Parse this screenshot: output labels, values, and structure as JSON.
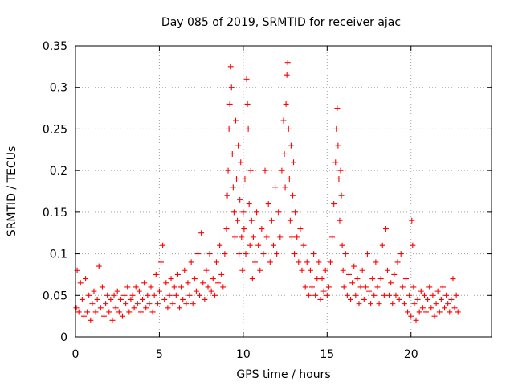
{
  "chart_data": {
    "type": "scatter",
    "title": "Day 085 of 2019, SRMTID for receiver ajac",
    "xlabel": "GPS time / hours",
    "ylabel": "SRMTID / TECUs",
    "xlim": [
      0,
      24.8
    ],
    "ylim": [
      0,
      0.35
    ],
    "xticks": [
      0,
      5,
      10,
      15,
      20
    ],
    "xtick_labels": [
      "0",
      "5",
      "10",
      "15",
      "20"
    ],
    "yticks": [
      0,
      0.05,
      0.1,
      0.15,
      0.2,
      0.25,
      0.3,
      0.35
    ],
    "ytick_labels": [
      "0",
      "0.05",
      "0.1",
      "0.15",
      "0.2",
      "0.25",
      "0.3",
      "0.35"
    ],
    "grid": true,
    "marker": "+",
    "color": "#ff0000",
    "series": [
      {
        "name": "SRMTID",
        "points": [
          [
            0.05,
            0.035
          ],
          [
            0.1,
            0.08
          ],
          [
            0.2,
            0.03
          ],
          [
            0.3,
            0.065
          ],
          [
            0.4,
            0.045
          ],
          [
            0.5,
            0.025
          ],
          [
            0.6,
            0.07
          ],
          [
            0.7,
            0.03
          ],
          [
            0.8,
            0.05
          ],
          [
            0.9,
            0.02
          ],
          [
            1.0,
            0.04
          ],
          [
            1.1,
            0.055
          ],
          [
            1.2,
            0.03
          ],
          [
            1.3,
            0.045
          ],
          [
            1.4,
            0.085
          ],
          [
            1.5,
            0.035
          ],
          [
            1.6,
            0.06
          ],
          [
            1.7,
            0.025
          ],
          [
            1.8,
            0.04
          ],
          [
            1.9,
            0.05
          ],
          [
            2.0,
            0.03
          ],
          [
            2.1,
            0.045
          ],
          [
            2.2,
            0.02
          ],
          [
            2.3,
            0.05
          ],
          [
            2.4,
            0.035
          ],
          [
            2.5,
            0.055
          ],
          [
            2.6,
            0.03
          ],
          [
            2.7,
            0.045
          ],
          [
            2.8,
            0.025
          ],
          [
            2.9,
            0.05
          ],
          [
            3.0,
            0.04
          ],
          [
            3.1,
            0.06
          ],
          [
            3.2,
            0.03
          ],
          [
            3.3,
            0.045
          ],
          [
            3.4,
            0.05
          ],
          [
            3.5,
            0.035
          ],
          [
            3.6,
            0.06
          ],
          [
            3.7,
            0.04
          ],
          [
            3.8,
            0.055
          ],
          [
            3.9,
            0.03
          ],
          [
            4.0,
            0.045
          ],
          [
            4.1,
            0.065
          ],
          [
            4.2,
            0.035
          ],
          [
            4.3,
            0.05
          ],
          [
            4.4,
            0.04
          ],
          [
            4.5,
            0.06
          ],
          [
            4.6,
            0.03
          ],
          [
            4.7,
            0.05
          ],
          [
            4.8,
            0.075
          ],
          [
            4.9,
            0.04
          ],
          [
            5.0,
            0.055
          ],
          [
            5.1,
            0.09
          ],
          [
            5.2,
            0.11
          ],
          [
            5.3,
            0.045
          ],
          [
            5.4,
            0.065
          ],
          [
            5.5,
            0.035
          ],
          [
            5.6,
            0.05
          ],
          [
            5.7,
            0.07
          ],
          [
            5.8,
            0.04
          ],
          [
            5.9,
            0.06
          ],
          [
            6.0,
            0.05
          ],
          [
            6.1,
            0.075
          ],
          [
            6.2,
            0.035
          ],
          [
            6.3,
            0.06
          ],
          [
            6.4,
            0.045
          ],
          [
            6.5,
            0.08
          ],
          [
            6.6,
            0.04
          ],
          [
            6.7,
            0.065
          ],
          [
            6.8,
            0.05
          ],
          [
            6.9,
            0.09
          ],
          [
            7.0,
            0.04
          ],
          [
            7.1,
            0.07
          ],
          [
            7.2,
            0.055
          ],
          [
            7.3,
            0.1
          ],
          [
            7.4,
            0.05
          ],
          [
            7.5,
            0.125
          ],
          [
            7.6,
            0.065
          ],
          [
            7.7,
            0.045
          ],
          [
            7.8,
            0.08
          ],
          [
            7.9,
            0.06
          ],
          [
            8.0,
            0.1
          ],
          [
            8.1,
            0.055
          ],
          [
            8.2,
            0.07
          ],
          [
            8.3,
            0.05
          ],
          [
            8.4,
            0.09
          ],
          [
            8.5,
            0.065
          ],
          [
            8.6,
            0.11
          ],
          [
            8.7,
            0.075
          ],
          [
            8.8,
            0.06
          ],
          [
            8.9,
            0.1
          ],
          [
            9.0,
            0.13
          ],
          [
            9.05,
            0.17
          ],
          [
            9.1,
            0.2
          ],
          [
            9.15,
            0.25
          ],
          [
            9.2,
            0.28
          ],
          [
            9.25,
            0.325
          ],
          [
            9.3,
            0.3
          ],
          [
            9.35,
            0.22
          ],
          [
            9.4,
            0.18
          ],
          [
            9.45,
            0.15
          ],
          [
            9.5,
            0.12
          ],
          [
            9.55,
            0.26
          ],
          [
            9.6,
            0.19
          ],
          [
            9.65,
            0.14
          ],
          [
            9.7,
            0.23
          ],
          [
            9.75,
            0.1
          ],
          [
            9.8,
            0.165
          ],
          [
            9.85,
            0.21
          ],
          [
            9.9,
            0.12
          ],
          [
            9.95,
            0.08
          ],
          [
            10.0,
            0.15
          ],
          [
            10.05,
            0.13
          ],
          [
            10.1,
            0.19
          ],
          [
            10.15,
            0.1
          ],
          [
            10.2,
            0.31
          ],
          [
            10.25,
            0.28
          ],
          [
            10.3,
            0.25
          ],
          [
            10.35,
            0.16
          ],
          [
            10.4,
            0.11
          ],
          [
            10.45,
            0.2
          ],
          [
            10.5,
            0.14
          ],
          [
            10.55,
            0.07
          ],
          [
            10.6,
            0.12
          ],
          [
            10.7,
            0.09
          ],
          [
            10.8,
            0.15
          ],
          [
            10.9,
            0.11
          ],
          [
            11.0,
            0.08
          ],
          [
            11.1,
            0.13
          ],
          [
            11.2,
            0.1
          ],
          [
            11.3,
            0.2
          ],
          [
            11.4,
            0.12
          ],
          [
            11.5,
            0.16
          ],
          [
            11.6,
            0.09
          ],
          [
            11.7,
            0.14
          ],
          [
            11.8,
            0.11
          ],
          [
            11.9,
            0.18
          ],
          [
            12.0,
            0.1
          ],
          [
            12.1,
            0.15
          ],
          [
            12.2,
            0.12
          ],
          [
            12.3,
            0.2
          ],
          [
            12.4,
            0.26
          ],
          [
            12.45,
            0.22
          ],
          [
            12.5,
            0.18
          ],
          [
            12.55,
            0.28
          ],
          [
            12.6,
            0.315
          ],
          [
            12.65,
            0.33
          ],
          [
            12.7,
            0.25
          ],
          [
            12.75,
            0.19
          ],
          [
            12.8,
            0.14
          ],
          [
            12.85,
            0.23
          ],
          [
            12.9,
            0.12
          ],
          [
            12.95,
            0.17
          ],
          [
            13.0,
            0.21
          ],
          [
            13.05,
            0.1
          ],
          [
            13.1,
            0.15
          ],
          [
            13.2,
            0.12
          ],
          [
            13.3,
            0.09
          ],
          [
            13.4,
            0.13
          ],
          [
            13.5,
            0.08
          ],
          [
            13.6,
            0.11
          ],
          [
            13.7,
            0.06
          ],
          [
            13.8,
            0.09
          ],
          [
            13.9,
            0.05
          ],
          [
            14.0,
            0.08
          ],
          [
            14.1,
            0.06
          ],
          [
            14.2,
            0.1
          ],
          [
            14.3,
            0.05
          ],
          [
            14.4,
            0.07
          ],
          [
            14.5,
            0.09
          ],
          [
            14.6,
            0.045
          ],
          [
            14.7,
            0.07
          ],
          [
            14.8,
            0.055
          ],
          [
            14.9,
            0.08
          ],
          [
            15.0,
            0.05
          ],
          [
            15.1,
            0.06
          ],
          [
            15.2,
            0.09
          ],
          [
            15.3,
            0.12
          ],
          [
            15.4,
            0.16
          ],
          [
            15.5,
            0.21
          ],
          [
            15.55,
            0.25
          ],
          [
            15.6,
            0.275
          ],
          [
            15.65,
            0.23
          ],
          [
            15.7,
            0.19
          ],
          [
            15.75,
            0.14
          ],
          [
            15.8,
            0.2
          ],
          [
            15.85,
            0.17
          ],
          [
            15.9,
            0.11
          ],
          [
            15.95,
            0.08
          ],
          [
            16.0,
            0.06
          ],
          [
            16.1,
            0.1
          ],
          [
            16.2,
            0.05
          ],
          [
            16.3,
            0.075
          ],
          [
            16.4,
            0.045
          ],
          [
            16.5,
            0.065
          ],
          [
            16.6,
            0.085
          ],
          [
            16.7,
            0.05
          ],
          [
            16.8,
            0.07
          ],
          [
            16.9,
            0.04
          ],
          [
            17.0,
            0.06
          ],
          [
            17.1,
            0.08
          ],
          [
            17.2,
            0.045
          ],
          [
            17.3,
            0.06
          ],
          [
            17.4,
            0.1
          ],
          [
            17.5,
            0.055
          ],
          [
            17.6,
            0.04
          ],
          [
            17.7,
            0.07
          ],
          [
            17.8,
            0.05
          ],
          [
            17.9,
            0.09
          ],
          [
            18.0,
            0.06
          ],
          [
            18.1,
            0.04
          ],
          [
            18.2,
            0.07
          ],
          [
            18.3,
            0.11
          ],
          [
            18.4,
            0.05
          ],
          [
            18.5,
            0.13
          ],
          [
            18.6,
            0.08
          ],
          [
            18.7,
            0.05
          ],
          [
            18.8,
            0.065
          ],
          [
            18.9,
            0.04
          ],
          [
            19.0,
            0.075
          ],
          [
            19.1,
            0.05
          ],
          [
            19.2,
            0.09
          ],
          [
            19.3,
            0.045
          ],
          [
            19.4,
            0.1
          ],
          [
            19.5,
            0.06
          ],
          [
            19.6,
            0.04
          ],
          [
            19.7,
            0.07
          ],
          [
            19.8,
            0.03
          ],
          [
            19.9,
            0.05
          ],
          [
            20.0,
            0.025
          ],
          [
            20.05,
            0.14
          ],
          [
            20.1,
            0.11
          ],
          [
            20.15,
            0.06
          ],
          [
            20.2,
            0.04
          ],
          [
            20.3,
            0.02
          ],
          [
            20.4,
            0.045
          ],
          [
            20.5,
            0.03
          ],
          [
            20.6,
            0.055
          ],
          [
            20.7,
            0.035
          ],
          [
            20.8,
            0.05
          ],
          [
            20.9,
            0.03
          ],
          [
            21.0,
            0.045
          ],
          [
            21.1,
            0.06
          ],
          [
            21.2,
            0.035
          ],
          [
            21.3,
            0.05
          ],
          [
            21.4,
            0.025
          ],
          [
            21.5,
            0.04
          ],
          [
            21.6,
            0.055
          ],
          [
            21.7,
            0.03
          ],
          [
            21.8,
            0.045
          ],
          [
            21.9,
            0.06
          ],
          [
            22.0,
            0.035
          ],
          [
            22.1,
            0.05
          ],
          [
            22.2,
            0.04
          ],
          [
            22.3,
            0.03
          ],
          [
            22.4,
            0.045
          ],
          [
            22.5,
            0.07
          ],
          [
            22.6,
            0.035
          ],
          [
            22.7,
            0.05
          ],
          [
            22.8,
            0.03
          ]
        ]
      }
    ]
  }
}
